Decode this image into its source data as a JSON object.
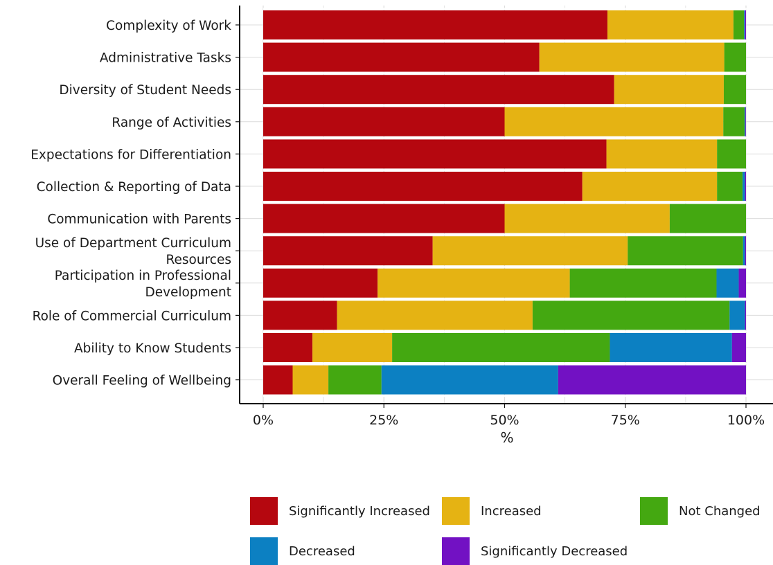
{
  "chart_data": {
    "type": "bar",
    "orientation": "horizontal",
    "stacked": true,
    "normalized": true,
    "title": "",
    "xlabel": "%",
    "ylabel": "",
    "xlim": [
      0,
      100
    ],
    "x_ticks": [
      "0%",
      "25%",
      "50%",
      "75%",
      "100%"
    ],
    "grid": true,
    "legend_position": "bottom",
    "categories": [
      "Complexity of Work",
      "Administrative Tasks",
      "Diversity of Student Needs",
      "Range of Activities",
      "Expectations for Differentiation",
      "Collection & Reporting of Data",
      "Communication with Parents",
      "Use of Department Curriculum Resources",
      "Participation in Professional Development",
      "Role of Commercial Curriculum",
      "Ability to Know Students",
      "Overall Feeling of Wellbeing"
    ],
    "series": [
      {
        "name": "Significantly Increased",
        "color": "#b5070f",
        "values": [
          71.3,
          57.2,
          72.7,
          50.0,
          71.1,
          66.1,
          50.0,
          35.1,
          23.7,
          15.3,
          10.2,
          6.1
        ]
      },
      {
        "name": "Increased",
        "color": "#e5b313",
        "values": [
          26.1,
          38.3,
          22.7,
          45.3,
          22.9,
          27.9,
          34.2,
          40.4,
          39.8,
          40.5,
          16.5,
          7.4
        ]
      },
      {
        "name": "Not Changed",
        "color": "#44a811",
        "values": [
          2.2,
          4.5,
          4.6,
          4.4,
          6.0,
          5.3,
          15.8,
          23.9,
          30.4,
          40.8,
          45.1,
          11.0
        ]
      },
      {
        "name": "Decreased",
        "color": "#0c80c2",
        "values": [
          0.2,
          0.0,
          0.0,
          0.2,
          0.0,
          0.5,
          0.0,
          0.4,
          4.6,
          3.2,
          25.3,
          36.6
        ]
      },
      {
        "name": "Significantly Decreased",
        "color": "#7211c3",
        "values": [
          0.2,
          0.0,
          0.0,
          0.1,
          0.0,
          0.2,
          0.0,
          0.2,
          1.5,
          0.2,
          2.9,
          38.9
        ]
      }
    ]
  }
}
